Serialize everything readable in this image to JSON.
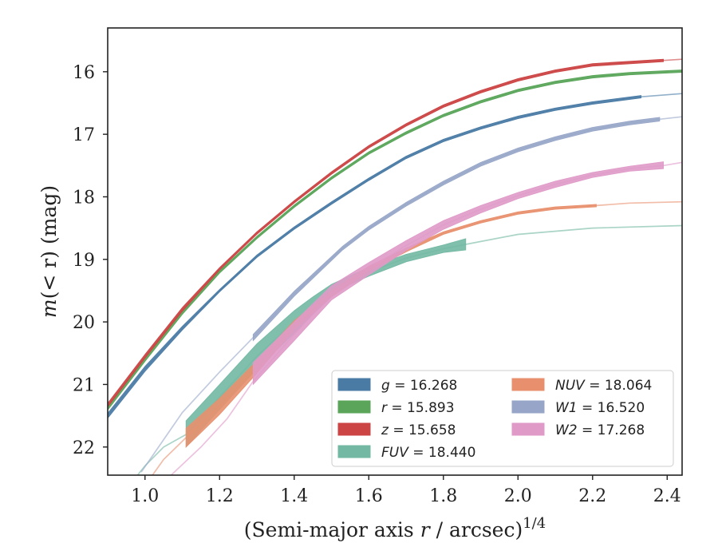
{
  "chart_data": {
    "type": "line",
    "title": "",
    "xlabel": "(Semi-major axis r / arcsec)",
    "xlabel_sup": "1/4",
    "xlabel_var": "r",
    "ylabel": "m(< r) (mag)",
    "xlim": [
      0.9,
      2.44
    ],
    "ylim": [
      22.45,
      15.3
    ],
    "y_inverted": true,
    "xticks": [
      1.0,
      1.2,
      1.4,
      1.6,
      1.8,
      2.0,
      2.2,
      2.4
    ],
    "xtick_labels": [
      "1.0",
      "1.2",
      "1.4",
      "1.6",
      "1.8",
      "2.0",
      "2.2",
      "2.4"
    ],
    "yticks": [
      16,
      17,
      18,
      19,
      20,
      21,
      22
    ],
    "ytick_labels": [
      "16",
      "17",
      "18",
      "19",
      "20",
      "21",
      "22"
    ],
    "grid": false,
    "legend": {
      "placement": "lower-right",
      "columns": 2
    },
    "series": [
      {
        "name": "g = 16.268",
        "band": "g",
        "value": "16.268",
        "color": "#4a7ba5",
        "x": [
          0.9,
          1.0,
          1.1,
          1.2,
          1.3,
          1.4,
          1.5,
          1.6,
          1.7,
          1.8,
          1.9,
          2.0,
          2.1,
          2.2,
          2.33,
          2.44
        ],
        "y": [
          21.5,
          20.75,
          20.1,
          19.5,
          18.95,
          18.5,
          18.1,
          17.72,
          17.37,
          17.1,
          16.9,
          16.73,
          16.6,
          16.5,
          16.4,
          16.35
        ],
        "band_lo": [
          21.46,
          20.71,
          20.07,
          19.48,
          18.93,
          18.48,
          18.08,
          17.7,
          17.35,
          17.08,
          16.88,
          16.71,
          16.58,
          16.48,
          16.38
        ],
        "band_hi": [
          21.54,
          20.79,
          20.13,
          19.52,
          18.97,
          18.52,
          18.12,
          17.74,
          17.39,
          17.12,
          16.92,
          16.75,
          16.62,
          16.52,
          16.42
        ],
        "band_x_end": 2.33
      },
      {
        "name": "r = 15.893",
        "band": "r",
        "value": "15.893",
        "color": "#5aa55a",
        "x": [
          0.9,
          1.0,
          1.1,
          1.2,
          1.3,
          1.4,
          1.5,
          1.6,
          1.7,
          1.8,
          1.9,
          2.0,
          2.1,
          2.2,
          2.3,
          2.44
        ],
        "y": [
          21.38,
          20.6,
          19.85,
          19.2,
          18.65,
          18.15,
          17.7,
          17.3,
          16.98,
          16.7,
          16.48,
          16.3,
          16.17,
          16.08,
          16.03,
          15.99
        ],
        "band_lo": [
          21.35,
          20.57,
          19.82,
          19.18,
          18.63,
          18.13,
          17.68,
          17.28,
          16.96,
          16.68,
          16.46,
          16.28,
          16.15,
          16.06,
          16.01,
          15.97
        ],
        "band_hi": [
          21.41,
          20.63,
          19.88,
          19.22,
          18.67,
          18.17,
          17.72,
          17.32,
          17.0,
          16.72,
          16.5,
          16.32,
          16.19,
          16.1,
          16.05,
          16.01
        ],
        "band_x_end": 2.44
      },
      {
        "name": "z = 15.658",
        "band": "z",
        "value": "15.658",
        "color": "#cc4444",
        "x": [
          0.9,
          1.0,
          1.1,
          1.2,
          1.3,
          1.4,
          1.5,
          1.6,
          1.7,
          1.8,
          1.9,
          2.0,
          2.1,
          2.2,
          2.39,
          2.44
        ],
        "y": [
          21.33,
          20.55,
          19.8,
          19.15,
          18.58,
          18.08,
          17.62,
          17.2,
          16.85,
          16.55,
          16.32,
          16.13,
          15.99,
          15.89,
          15.82,
          15.8
        ],
        "band_lo": [
          21.3,
          20.52,
          19.77,
          19.13,
          18.56,
          18.06,
          17.6,
          17.18,
          16.83,
          16.53,
          16.3,
          16.11,
          15.97,
          15.87,
          15.8
        ],
        "band_hi": [
          21.36,
          20.58,
          19.83,
          19.17,
          18.6,
          18.1,
          17.64,
          17.22,
          16.87,
          16.57,
          16.34,
          16.15,
          16.01,
          15.91,
          15.84
        ],
        "band_x_end": 2.39
      },
      {
        "name": "FUV = 18.440",
        "band": "FUV",
        "value": "18.440",
        "color": "#72b8a2",
        "x": [
          0.98,
          1.0,
          1.05,
          1.11,
          1.2,
          1.3,
          1.4,
          1.45,
          1.5,
          1.55,
          1.6,
          1.7,
          1.8,
          1.86,
          2.0,
          2.2,
          2.44
        ],
        "y": [
          22.45,
          22.3,
          22.0,
          21.8,
          21.2,
          20.55,
          20.0,
          19.72,
          19.5,
          19.33,
          19.2,
          18.98,
          18.83,
          18.76,
          18.6,
          18.5,
          18.46
        ],
        "band_x": [
          1.11,
          1.2,
          1.3,
          1.4,
          1.45,
          1.5,
          1.55,
          1.6,
          1.7,
          1.8,
          1.86
        ],
        "band_lo": [
          21.58,
          21.0,
          20.35,
          19.82,
          19.6,
          19.4,
          19.26,
          19.13,
          18.92,
          18.77,
          18.67
        ],
        "band_hi": [
          22.0,
          21.4,
          20.75,
          20.18,
          19.88,
          19.6,
          19.4,
          19.27,
          19.04,
          18.89,
          18.85
        ]
      },
      {
        "name": "NUV = 18.064",
        "band": "NUV",
        "value": "18.064",
        "color": "#e8906e",
        "x": [
          1.02,
          1.05,
          1.11,
          1.2,
          1.3,
          1.4,
          1.5,
          1.6,
          1.7,
          1.8,
          1.9,
          2.0,
          2.1,
          2.21,
          2.3,
          2.44
        ],
        "y": [
          22.45,
          22.2,
          21.85,
          21.35,
          20.72,
          20.05,
          19.55,
          19.15,
          18.85,
          18.58,
          18.4,
          18.26,
          18.18,
          18.14,
          18.1,
          18.08
        ],
        "band_x": [
          1.11,
          1.2,
          1.3,
          1.4,
          1.5,
          1.6,
          1.7,
          1.8,
          1.9,
          2.0,
          2.1,
          2.21
        ],
        "band_lo": [
          21.7,
          21.22,
          20.62,
          19.98,
          19.5,
          19.11,
          18.82,
          18.56,
          18.38,
          18.24,
          18.16,
          18.12
        ],
        "band_hi": [
          22.0,
          21.48,
          20.82,
          20.12,
          19.6,
          19.19,
          18.88,
          18.6,
          18.42,
          18.28,
          18.2,
          18.16
        ]
      },
      {
        "name": "W1 = 16.520",
        "band": "W1",
        "value": "16.520",
        "color": "#97a6c8",
        "x": [
          0.99,
          1.1,
          1.2,
          1.29,
          1.4,
          1.53,
          1.6,
          1.7,
          1.8,
          1.9,
          2.0,
          2.1,
          2.2,
          2.3,
          2.38,
          2.44
        ],
        "y": [
          22.4,
          21.45,
          20.8,
          20.25,
          19.55,
          18.82,
          18.5,
          18.12,
          17.78,
          17.48,
          17.25,
          17.07,
          16.92,
          16.82,
          16.76,
          16.72
        ],
        "band_x": [
          1.29,
          1.4,
          1.53,
          1.6,
          1.7,
          1.8,
          1.9,
          2.0,
          2.1,
          2.2,
          2.3,
          2.38
        ],
        "band_lo": [
          20.2,
          19.51,
          18.79,
          18.47,
          18.09,
          17.75,
          17.45,
          17.22,
          17.04,
          16.89,
          16.79,
          16.73
        ],
        "band_hi": [
          20.3,
          19.59,
          18.85,
          18.53,
          18.15,
          17.81,
          17.51,
          17.28,
          17.1,
          16.95,
          16.85,
          16.79
        ]
      },
      {
        "name": "W2 = 17.268",
        "band": "W2",
        "value": "17.268",
        "color": "#df9ac8",
        "x": [
          1.07,
          1.15,
          1.22,
          1.29,
          1.4,
          1.5,
          1.6,
          1.7,
          1.8,
          1.9,
          2.0,
          2.1,
          2.2,
          2.3,
          2.39,
          2.44
        ],
        "y": [
          22.45,
          22.0,
          21.55,
          20.95,
          20.2,
          19.55,
          19.15,
          18.78,
          18.45,
          18.2,
          17.98,
          17.8,
          17.65,
          17.55,
          17.5,
          17.45
        ],
        "band_x": [
          1.29,
          1.4,
          1.5,
          1.6,
          1.7,
          1.8,
          1.9,
          2.0,
          2.1,
          2.2,
          2.3,
          2.39
        ],
        "band_lo": [
          20.65,
          20.0,
          19.42,
          19.05,
          18.7,
          18.38,
          18.14,
          17.93,
          17.75,
          17.61,
          17.51,
          17.44
        ],
        "band_hi": [
          21.0,
          20.3,
          19.65,
          19.25,
          18.86,
          18.52,
          18.26,
          18.03,
          17.85,
          17.69,
          17.59,
          17.55
        ]
      }
    ]
  }
}
